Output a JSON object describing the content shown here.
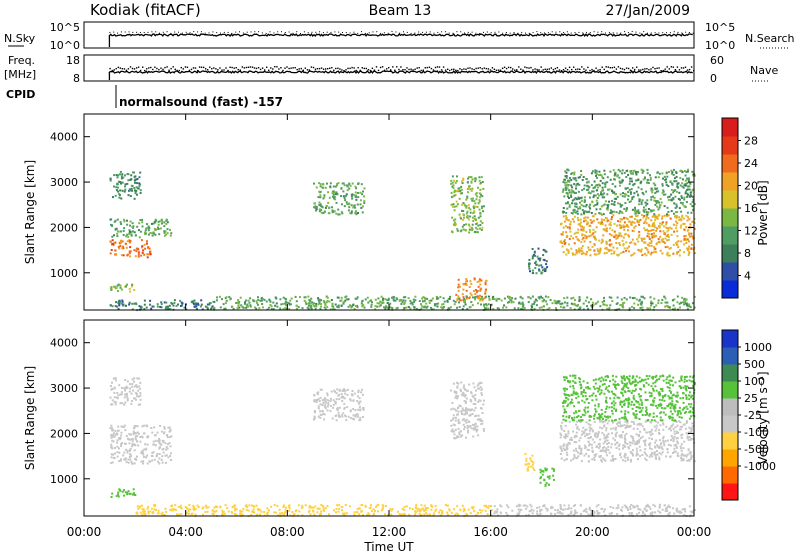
{
  "header": {
    "station": "Kodiak (fitACF)",
    "beam": "Beam 13",
    "date": "27/Jan/2009"
  },
  "top_panels": {
    "nsky": {
      "label": "N.Sky",
      "left_ticks": [
        "10^5",
        "10^0"
      ],
      "right_label": "N.Search",
      "right_ticks": [
        "10^5",
        "10^0"
      ]
    },
    "freq": {
      "label_line1": "Freq.",
      "label_line2": "[MHz]",
      "left_ticks": [
        "18",
        "8"
      ],
      "right_label": "Nave",
      "right_ticks": [
        "60",
        "0"
      ]
    },
    "cpid": {
      "label": "CPID",
      "value": "normalsound (fast) -157"
    }
  },
  "colors": {
    "power_scale": [
      "#0a2cd8",
      "#2e4ea8",
      "#3d7f5a",
      "#4f9d63",
      "#7bb843",
      "#d9c12b",
      "#f0a226",
      "#f06b1d",
      "#e53a1a",
      "#d91c1c"
    ],
    "velocity_scale": [
      "#ff1515",
      "#ff6a00",
      "#ffa500",
      "#ffd040",
      "#c8c8c8",
      "#bdbdbd",
      "#55c23a",
      "#3d8a53",
      "#2b5fb5",
      "#1a33c8"
    ],
    "ground_scatter": "#c7c7c7"
  },
  "chart_data": [
    {
      "type": "heatmap",
      "name": "power",
      "ylabel": "Slant Range [km]",
      "xlabel": "",
      "ylim": [
        180,
        4500
      ],
      "xlim": [
        0,
        24
      ],
      "yticks": [
        "1000",
        "2000",
        "3000",
        "4000"
      ],
      "colorbar": {
        "label": "Power [dB]",
        "ticks": [
          "4",
          "8",
          "12",
          "16",
          "20",
          "24",
          "28"
        ],
        "range": [
          0,
          32
        ]
      },
      "regions": [
        {
          "t0": 1.0,
          "t1": 2.2,
          "r0": 2650,
          "r1": 3250,
          "value": 9
        },
        {
          "t0": 1.0,
          "t1": 2.6,
          "r0": 1350,
          "r1": 1750,
          "value": 24
        },
        {
          "t0": 1.0,
          "t1": 3.4,
          "r0": 1800,
          "r1": 2200,
          "value": 12
        },
        {
          "t0": 1.0,
          "t1": 2.0,
          "r0": 600,
          "r1": 800,
          "value": 14
        },
        {
          "t0": 1.0,
          "t1": 5.2,
          "r0": 200,
          "r1": 420,
          "value": 8
        },
        {
          "t0": 9.0,
          "t1": 11.0,
          "r0": 2300,
          "r1": 3000,
          "value": 12
        },
        {
          "t0": 14.4,
          "t1": 15.7,
          "r0": 1900,
          "r1": 3150,
          "value": 14
        },
        {
          "t0": 14.6,
          "t1": 15.8,
          "r0": 400,
          "r1": 900,
          "value": 22
        },
        {
          "t0": 17.4,
          "t1": 18.2,
          "r0": 1000,
          "r1": 1600,
          "value": 8
        },
        {
          "t0": 18.7,
          "t1": 24.0,
          "r0": 1400,
          "r1": 2300,
          "value": 20
        },
        {
          "t0": 18.8,
          "t1": 24.0,
          "r0": 2300,
          "r1": 3300,
          "value": 11
        },
        {
          "t0": 5.0,
          "t1": 24.0,
          "r0": 200,
          "r1": 500,
          "value": 12
        }
      ]
    },
    {
      "type": "heatmap",
      "name": "velocity",
      "ylabel": "Slant Range [km]",
      "xlabel": "Time UT",
      "ylim": [
        180,
        4500
      ],
      "xlim": [
        0,
        24
      ],
      "xticks": [
        "00:00",
        "04:00",
        "08:00",
        "12:00",
        "16:00",
        "20:00",
        "00:00"
      ],
      "yticks": [
        "1000",
        "2000",
        "3000",
        "4000"
      ],
      "colorbar": {
        "label": "Velocity [m s⁻¹]",
        "ticks": [
          "1000",
          "500",
          "100",
          "25",
          "-25",
          "-100",
          "-500",
          "-1000"
        ]
      },
      "regions": [
        {
          "t0": 1.0,
          "t1": 2.2,
          "r0": 2650,
          "r1": 3250,
          "value": 0
        },
        {
          "t0": 1.0,
          "t1": 3.4,
          "r0": 1350,
          "r1": 2200,
          "value": 0
        },
        {
          "t0": 1.0,
          "t1": 2.0,
          "r0": 600,
          "r1": 800,
          "value": 30
        },
        {
          "t0": 9.0,
          "t1": 11.0,
          "r0": 2300,
          "r1": 3000,
          "value": 0
        },
        {
          "t0": 14.4,
          "t1": 15.7,
          "r0": 1900,
          "r1": 3150,
          "value": 0
        },
        {
          "t0": 17.3,
          "t1": 17.8,
          "r0": 1200,
          "r1": 1600,
          "value": -150
        },
        {
          "t0": 17.9,
          "t1": 18.5,
          "r0": 850,
          "r1": 1250,
          "value": 60
        },
        {
          "t0": 18.7,
          "t1": 24.0,
          "r0": 1400,
          "r1": 2300,
          "value": 0
        },
        {
          "t0": 18.8,
          "t1": 24.0,
          "r0": 2300,
          "r1": 3300,
          "value": 80
        },
        {
          "t0": 2.0,
          "t1": 16.0,
          "r0": 200,
          "r1": 450,
          "value": -120
        },
        {
          "t0": 16.0,
          "t1": 24.0,
          "r0": 200,
          "r1": 450,
          "value": 0
        }
      ]
    }
  ]
}
